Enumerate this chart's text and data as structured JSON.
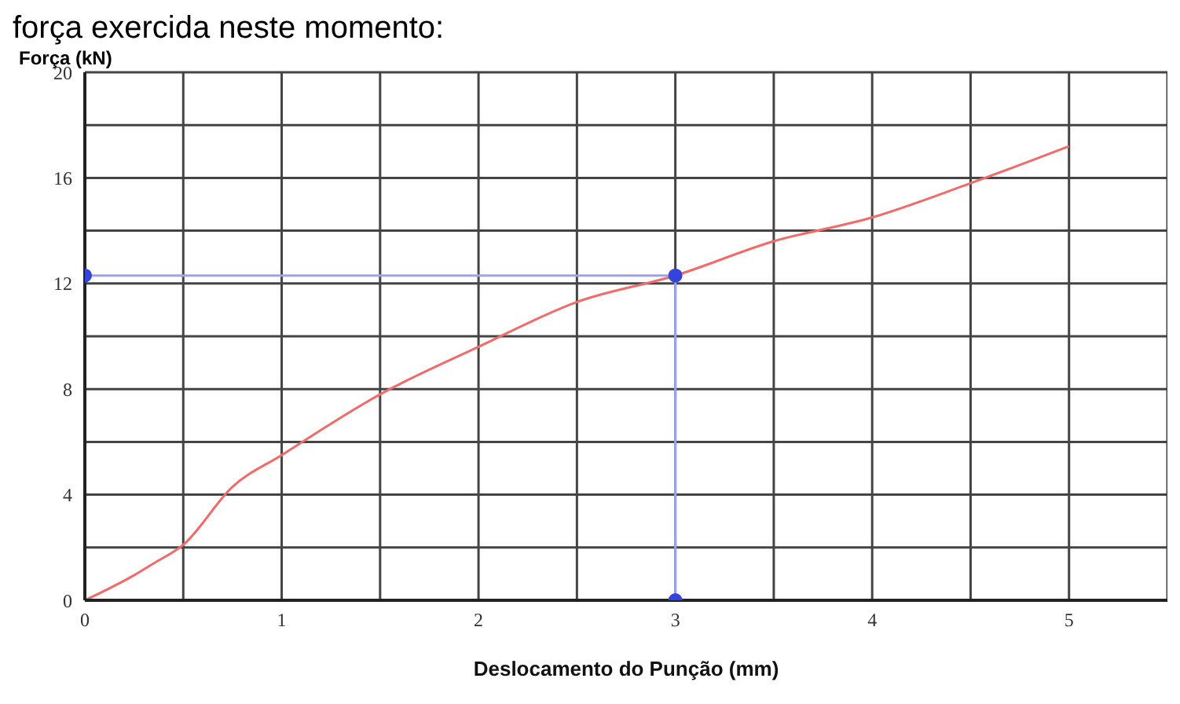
{
  "chart_data": {
    "type": "line",
    "title": "força exercida neste momento:",
    "xlabel": "Deslocamento do Punção (mm)",
    "ylabel": "Força (kN)",
    "xlim": [
      0,
      5.5
    ],
    "xticks": [
      0,
      {
        "value": 0.5,
        "label": null
      },
      1,
      {
        "value": 1.5,
        "label": null
      },
      2,
      {
        "value": 2.5,
        "label": null
      },
      3,
      {
        "value": 3.5,
        "label": null
      },
      4,
      {
        "value": 4.5,
        "label": null
      },
      5,
      {
        "value": 5.5,
        "label": null
      }
    ],
    "ylim": [
      0,
      20
    ],
    "yticks": [
      0,
      {
        "value": 2,
        "label": null
      },
      4,
      {
        "value": 6,
        "label": null
      },
      8,
      {
        "value": 10,
        "label": null
      },
      12,
      {
        "value": 14,
        "label": null
      },
      16,
      {
        "value": 18,
        "label": null
      },
      20
    ],
    "grid": true,
    "series": [
      {
        "color": "#f26b6b",
        "marker": "none",
        "x": [
          0,
          0.25,
          0.35,
          0.5,
          0.75,
          1,
          1.5,
          2,
          2.5,
          3,
          3.5,
          4,
          4.5,
          5
        ],
        "values": [
          0,
          0.95,
          1.4,
          2.1,
          4.3,
          5.5,
          7.8,
          9.6,
          11.3,
          12.3,
          13.6,
          14.5,
          15.8,
          17.2
        ]
      },
      {
        "color": "#9da3f0",
        "marker": "circle",
        "x": [
          0,
          3,
          3
        ],
        "values": [
          12.3,
          12.3,
          0
        ]
      }
    ]
  }
}
